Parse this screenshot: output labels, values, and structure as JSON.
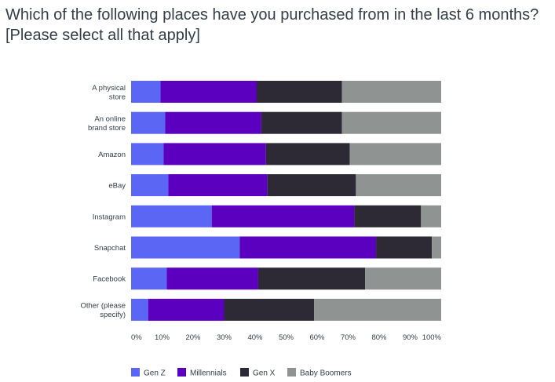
{
  "title": {
    "line1": "Which of the following places have you purchased from in the last 6 months?",
    "line2": "[Please select all that apply]"
  },
  "chart_data": {
    "type": "bar",
    "orientation": "horizontal",
    "stacked": "percent",
    "title": "Which of the following places have you purchased from in the last 6 months? [Please select all that apply]",
    "categories": [
      [
        "A physical",
        "store"
      ],
      [
        "An online",
        "brand store"
      ],
      [
        "Amazon"
      ],
      [
        "eBay"
      ],
      [
        "Instagram"
      ],
      [
        "Snapchat"
      ],
      [
        "Facebook"
      ],
      [
        "Other (please",
        "specify)"
      ]
    ],
    "series": [
      {
        "name": "Gen Z",
        "color": "#5b66f5",
        "values": [
          9.5,
          11,
          10.5,
          12,
          26,
          35,
          11.5,
          5.5
        ]
      },
      {
        "name": "Millennials",
        "color": "#5b00bf",
        "values": [
          31,
          31,
          33,
          32,
          46,
          44,
          29.5,
          24.5
        ]
      },
      {
        "name": "Gen X",
        "color": "#2d2a36",
        "values": [
          27.5,
          26,
          27,
          28.5,
          21.5,
          18,
          34.5,
          29
        ]
      },
      {
        "name": "Baby Boomers",
        "color": "#8f9392",
        "values": [
          32,
          32,
          29.5,
          27.5,
          6.5,
          3,
          24.5,
          41
        ]
      }
    ],
    "xlim": [
      0,
      100
    ],
    "xticks": [
      "0%",
      "10%",
      "20%",
      "30%",
      "40%",
      "50%",
      "60%",
      "70%",
      "80%",
      "90%",
      "100%"
    ],
    "legend_position": "bottom",
    "grid": false
  }
}
